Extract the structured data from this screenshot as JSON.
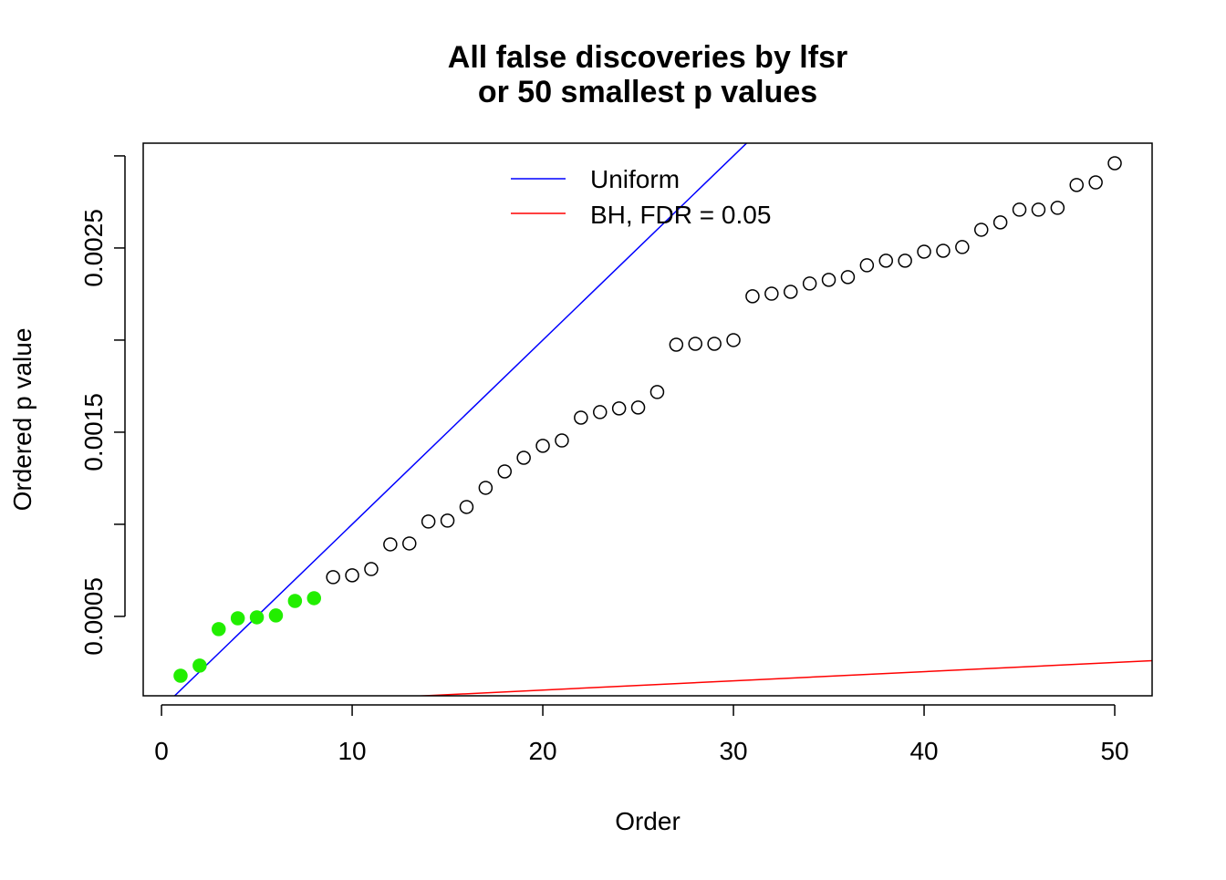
{
  "chart_data": {
    "type": "scatter",
    "title": [
      "All false discoveries by lfsr",
      "or 50 smallest p values"
    ],
    "xlabel": "Order",
    "ylabel": "Ordered p value",
    "xlim": [
      -0.96,
      51.96
    ],
    "ylim": [
      6.9e-05,
      0.003069
    ],
    "x_ticks": [
      0,
      10,
      20,
      30,
      40,
      50
    ],
    "x_tick_labels": [
      "0",
      "10",
      "20",
      "30",
      "40",
      "50"
    ],
    "y_ticks": [
      0.0005,
      0.001,
      0.0015,
      0.002,
      0.0025,
      0.003
    ],
    "y_tick_labels": [
      "0.0005",
      "",
      "0.0015",
      "",
      "0.0025",
      ""
    ],
    "grid": false,
    "legend_placement": "top",
    "points": {
      "x": [
        1,
        2,
        3,
        4,
        5,
        6,
        7,
        8,
        9,
        10,
        11,
        12,
        13,
        14,
        15,
        16,
        17,
        18,
        19,
        20,
        21,
        22,
        23,
        24,
        25,
        26,
        27,
        28,
        29,
        30,
        31,
        32,
        33,
        34,
        35,
        36,
        37,
        38,
        39,
        40,
        41,
        42,
        43,
        44,
        45,
        46,
        47,
        48,
        49,
        50
      ],
      "y": [
        0.000178,
        0.000233,
        0.000431,
        0.00049,
        0.000495,
        0.000505,
        0.000584,
        0.000599,
        0.000713,
        0.000723,
        0.000757,
        0.000891,
        0.000896,
        0.001015,
        0.00102,
        0.001094,
        0.001198,
        0.001287,
        0.001361,
        0.001426,
        0.001455,
        0.001579,
        0.001609,
        0.001629,
        0.001634,
        0.001718,
        0.001975,
        0.00198,
        0.00198,
        0.002,
        0.002238,
        0.002252,
        0.002262,
        0.002307,
        0.002327,
        0.002342,
        0.002406,
        0.002431,
        0.002431,
        0.00248,
        0.002485,
        0.002505,
        0.002599,
        0.002639,
        0.002708,
        0.002708,
        0.002718,
        0.002842,
        0.002856,
        0.00296
      ],
      "highlighted_count": 8,
      "highlight_color": "#22ee00",
      "open_color": "#000000"
    },
    "lines": [
      {
        "name": "Uniform",
        "slope": 0.0001,
        "intercept": 0,
        "color": "#0000ff"
      },
      {
        "name": "BH, FDR = 0.05",
        "slope": 5e-06,
        "intercept": 0,
        "color": "#ff0000"
      }
    ]
  }
}
